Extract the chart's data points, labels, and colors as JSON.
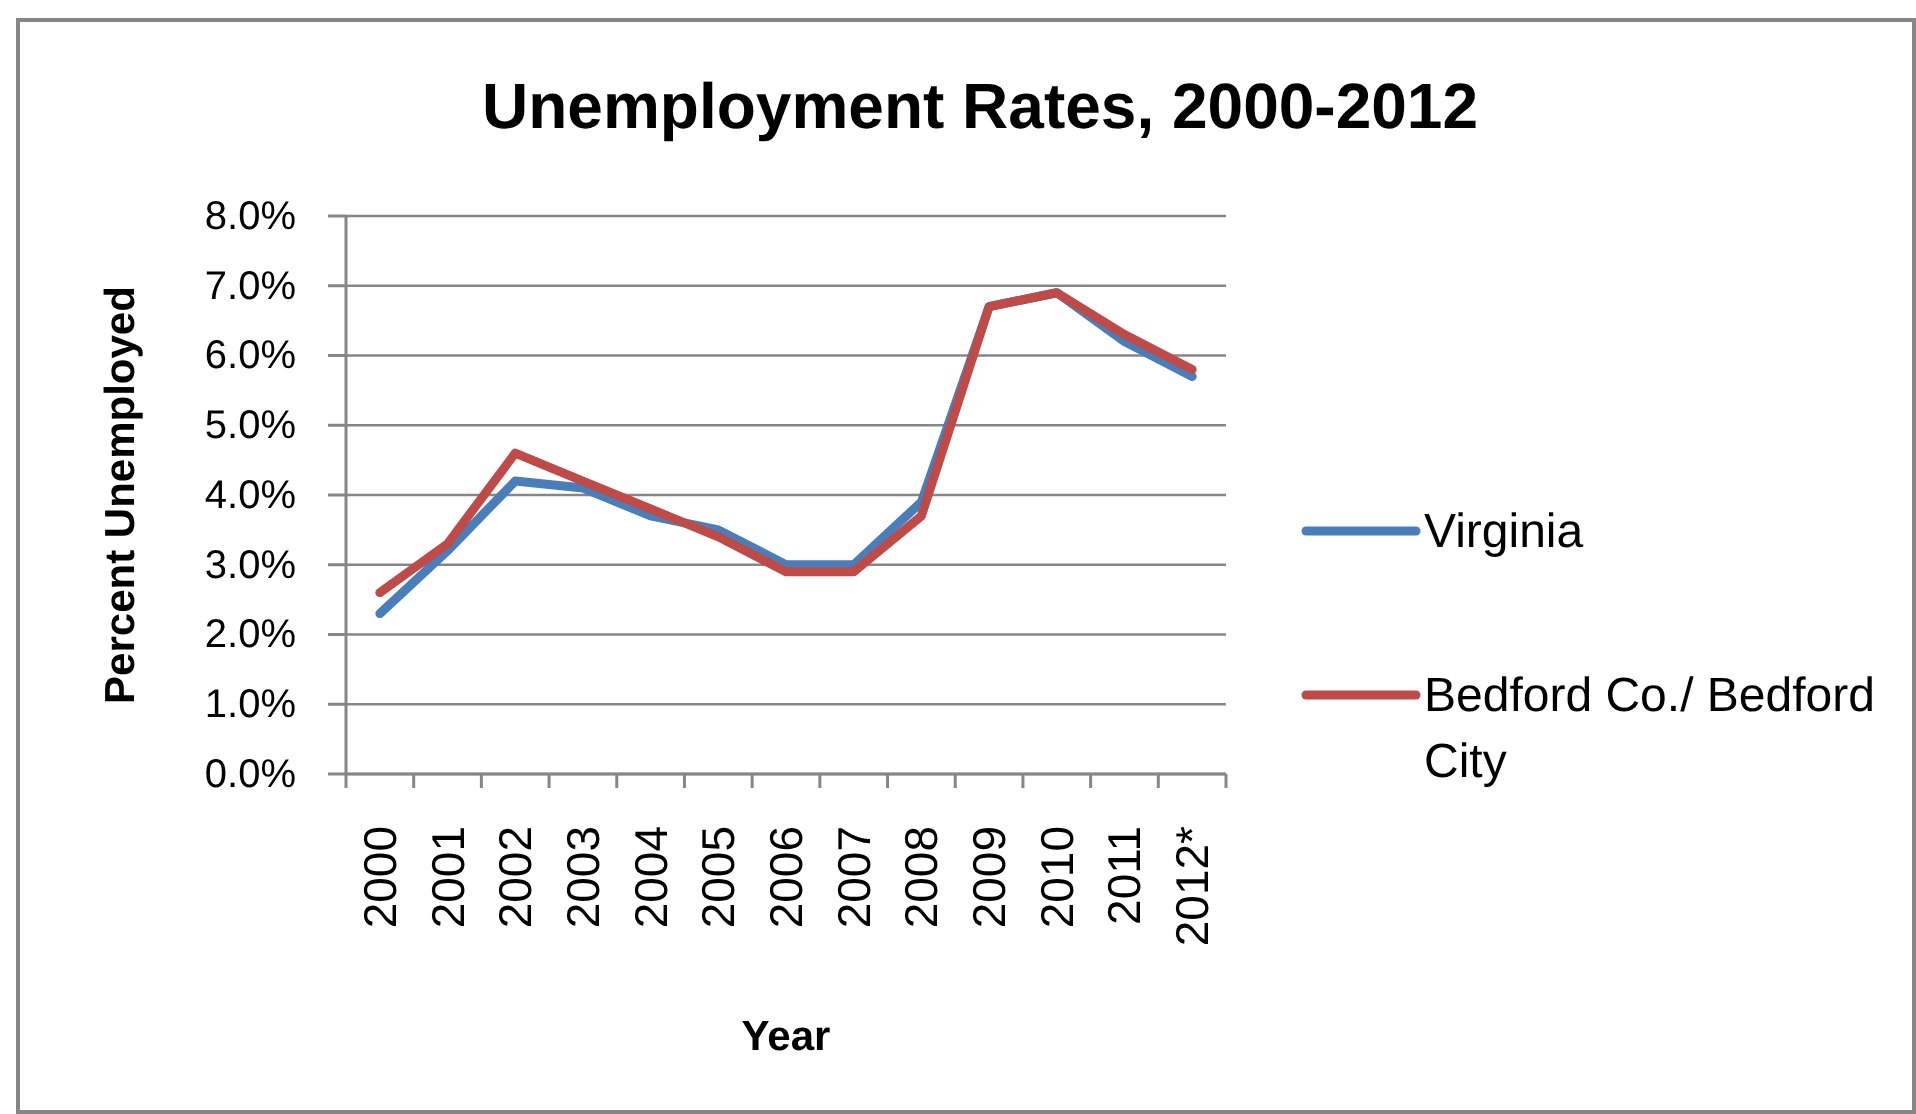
{
  "chart_data": {
    "type": "line",
    "title": "Unemployment Rates, 2000-2012",
    "xlabel": "Year",
    "ylabel": "Percent Unemployed",
    "categories": [
      "2000",
      "2001",
      "2002",
      "2003",
      "2004",
      "2005",
      "2006",
      "2007",
      "2008",
      "2009",
      "2010",
      "2011",
      "2012*"
    ],
    "series": [
      {
        "name": "Virginia",
        "color": "#4a7ebb",
        "values": [
          2.3,
          3.2,
          4.2,
          4.1,
          3.7,
          3.5,
          3.0,
          3.0,
          3.9,
          6.7,
          6.9,
          6.2,
          5.7
        ]
      },
      {
        "name": "Bedford Co./ Bedford City",
        "color": "#be4b48",
        "values": [
          2.6,
          3.3,
          4.6,
          4.2,
          3.8,
          3.4,
          2.9,
          2.9,
          3.7,
          6.7,
          6.9,
          6.3,
          5.8
        ]
      }
    ],
    "ylim": [
      0,
      8
    ],
    "yticks": [
      {
        "value": 0,
        "label": "0.0%"
      },
      {
        "value": 1,
        "label": "1.0%"
      },
      {
        "value": 2,
        "label": "2.0%"
      },
      {
        "value": 3,
        "label": "3.0%"
      },
      {
        "value": 4,
        "label": "4.0%"
      },
      {
        "value": 5,
        "label": "5.0%"
      },
      {
        "value": 6,
        "label": "6.0%"
      },
      {
        "value": 7,
        "label": "7.0%"
      },
      {
        "value": 8,
        "label": "8.0%"
      }
    ],
    "grid": "y",
    "legend": "right",
    "line_style": "solid"
  }
}
